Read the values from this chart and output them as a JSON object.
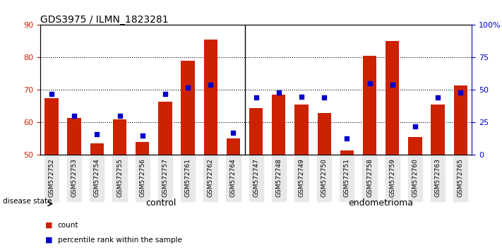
{
  "title": "GDS3975 / ILMN_1823281",
  "samples": [
    "GSM572752",
    "GSM572753",
    "GSM572754",
    "GSM572755",
    "GSM572756",
    "GSM572757",
    "GSM572761",
    "GSM572762",
    "GSM572764",
    "GSM572747",
    "GSM572748",
    "GSM572749",
    "GSM572750",
    "GSM572751",
    "GSM572758",
    "GSM572759",
    "GSM572760",
    "GSM572763",
    "GSM572765"
  ],
  "counts": [
    67.5,
    61.5,
    53.5,
    61.0,
    54.0,
    66.5,
    79.0,
    85.5,
    55.0,
    64.5,
    68.5,
    65.5,
    63.0,
    51.5,
    80.5,
    85.0,
    55.5,
    65.5,
    71.5
  ],
  "percentiles": [
    47,
    30,
    16,
    30,
    15,
    47,
    52,
    54,
    17,
    44,
    48,
    45,
    44,
    13,
    55,
    54,
    22,
    44,
    48
  ],
  "control_count": 9,
  "endometrioma_count": 10,
  "ylim_left": [
    50,
    90
  ],
  "ylim_right": [
    0,
    100
  ],
  "yticks_left": [
    50,
    60,
    70,
    80,
    90
  ],
  "yticks_right": [
    0,
    25,
    50,
    75,
    100
  ],
  "bar_color": "#cc2200",
  "dot_color": "#0000cc",
  "control_color": "#ccffcc",
  "endometrioma_color": "#44cc44",
  "grid_color": "#000000",
  "bg_color": "#e8e8e8",
  "label_count": "count",
  "label_percentile": "percentile rank within the sample",
  "disease_state_label": "disease state",
  "control_label": "control",
  "endometrioma_label": "endometrioma"
}
